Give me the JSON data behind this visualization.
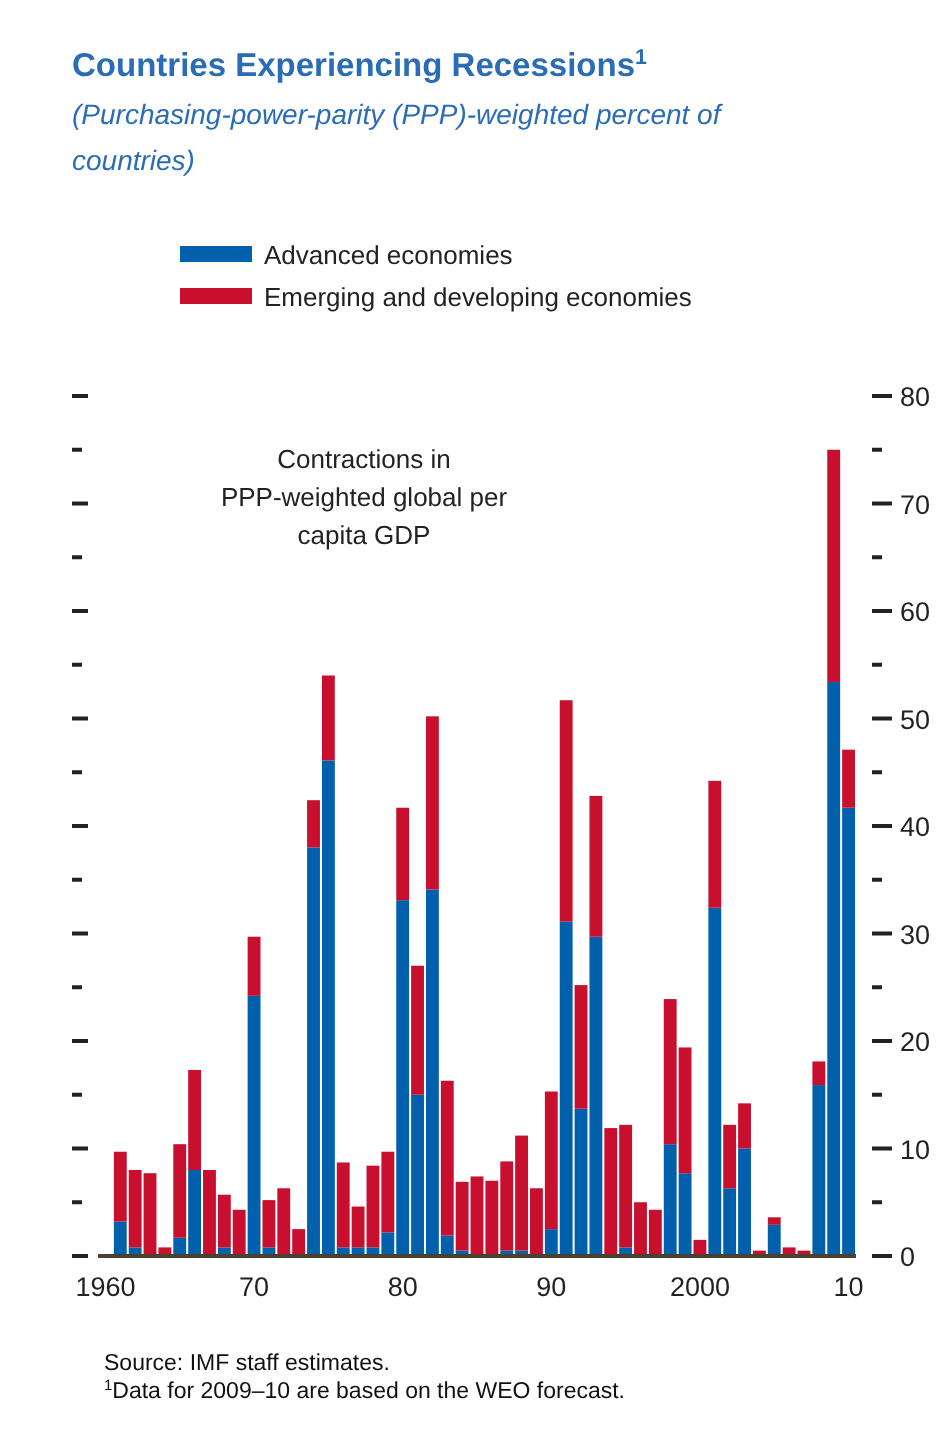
{
  "chart_data": {
    "type": "bar",
    "title": "Countries Experiencing Recessions$^{1}$",
    "subtitle": "(Purchasing-power-parity (PPP)-weighted percent of countries)",
    "x": [
      1961,
      1962,
      1963,
      1964,
      1965,
      1966,
      1967,
      1968,
      1969,
      1970,
      1971,
      1972,
      1973,
      1974,
      1975,
      1976,
      1977,
      1978,
      1979,
      1980,
      1981,
      1982,
      1983,
      1984,
      1985,
      1986,
      1987,
      1988,
      1989,
      1990,
      1991,
      1992,
      1993,
      1994,
      1995,
      1996,
      1997,
      1998,
      1999,
      2000,
      2001,
      2002,
      2003,
      2004,
      2005,
      2006,
      2007,
      2008,
      2009,
      2010
    ],
    "stacked": true,
    "series": [
      {
        "name": "Advanced economies",
        "color": "#0060ac",
        "values": [
          3.2,
          0.8,
          0,
          0,
          1.7,
          8.0,
          0,
          0.8,
          0,
          24.2,
          0.8,
          0,
          0,
          38.0,
          46.1,
          0.8,
          0.8,
          0.8,
          2.2,
          33.1,
          15.0,
          34.1,
          1.9,
          0.5,
          0,
          0,
          0.5,
          0.5,
          0,
          2.5,
          31.1,
          13.7,
          29.7,
          0,
          0.8,
          0,
          0,
          10.4,
          7.7,
          0,
          32.4,
          6.3,
          10.0,
          0,
          2.9,
          0,
          0,
          15.9,
          53.4,
          41.7
        ]
      },
      {
        "name": "Emerging and developing economies",
        "color": "#c8102e",
        "values": [
          6.5,
          7.2,
          7.7,
          0.8,
          8.7,
          9.3,
          8.0,
          4.9,
          4.3,
          5.5,
          4.4,
          6.3,
          2.5,
          4.4,
          7.9,
          7.9,
          3.8,
          7.6,
          7.5,
          8.6,
          12.0,
          16.1,
          14.4,
          6.4,
          7.4,
          7.0,
          8.3,
          10.7,
          6.3,
          12.8,
          20.6,
          11.5,
          13.1,
          11.9,
          11.4,
          5.0,
          4.3,
          13.5,
          11.7,
          1.5,
          11.8,
          5.9,
          4.2,
          0.5,
          0.7,
          0.8,
          0.5,
          2.2,
          21.6,
          5.4
        ]
      }
    ],
    "xlim": [
      1959.5,
      2010.5
    ],
    "xticks": [
      {
        "value": 1960,
        "label": "1960"
      },
      {
        "value": 1970,
        "label": "70"
      },
      {
        "value": 1980,
        "label": "80"
      },
      {
        "value": 1990,
        "label": "90"
      },
      {
        "value": 2000,
        "label": "2000"
      },
      {
        "value": 2010,
        "label": "10"
      }
    ],
    "ylim": [
      0,
      80
    ],
    "yticks": [
      0,
      {
        "value": 5,
        "label": null
      },
      10,
      {
        "value": 15,
        "label": null
      },
      20,
      {
        "value": 25,
        "label": null
      },
      30,
      {
        "value": 35,
        "label": null
      },
      40,
      {
        "value": 45,
        "label": null
      },
      50,
      {
        "value": 55,
        "label": null
      },
      60,
      {
        "value": 65,
        "label": null
      },
      70,
      {
        "value": 75,
        "label": null
      },
      80
    ],
    "grid": false,
    "legend": "top left",
    "annotations": [
      "Contractions in PPP-weighted global per capita GDP",
      "Source: IMF staff estimates.",
      "$^{1}$Data for 2009–10 are based on the WEO forecast."
    ]
  }
}
